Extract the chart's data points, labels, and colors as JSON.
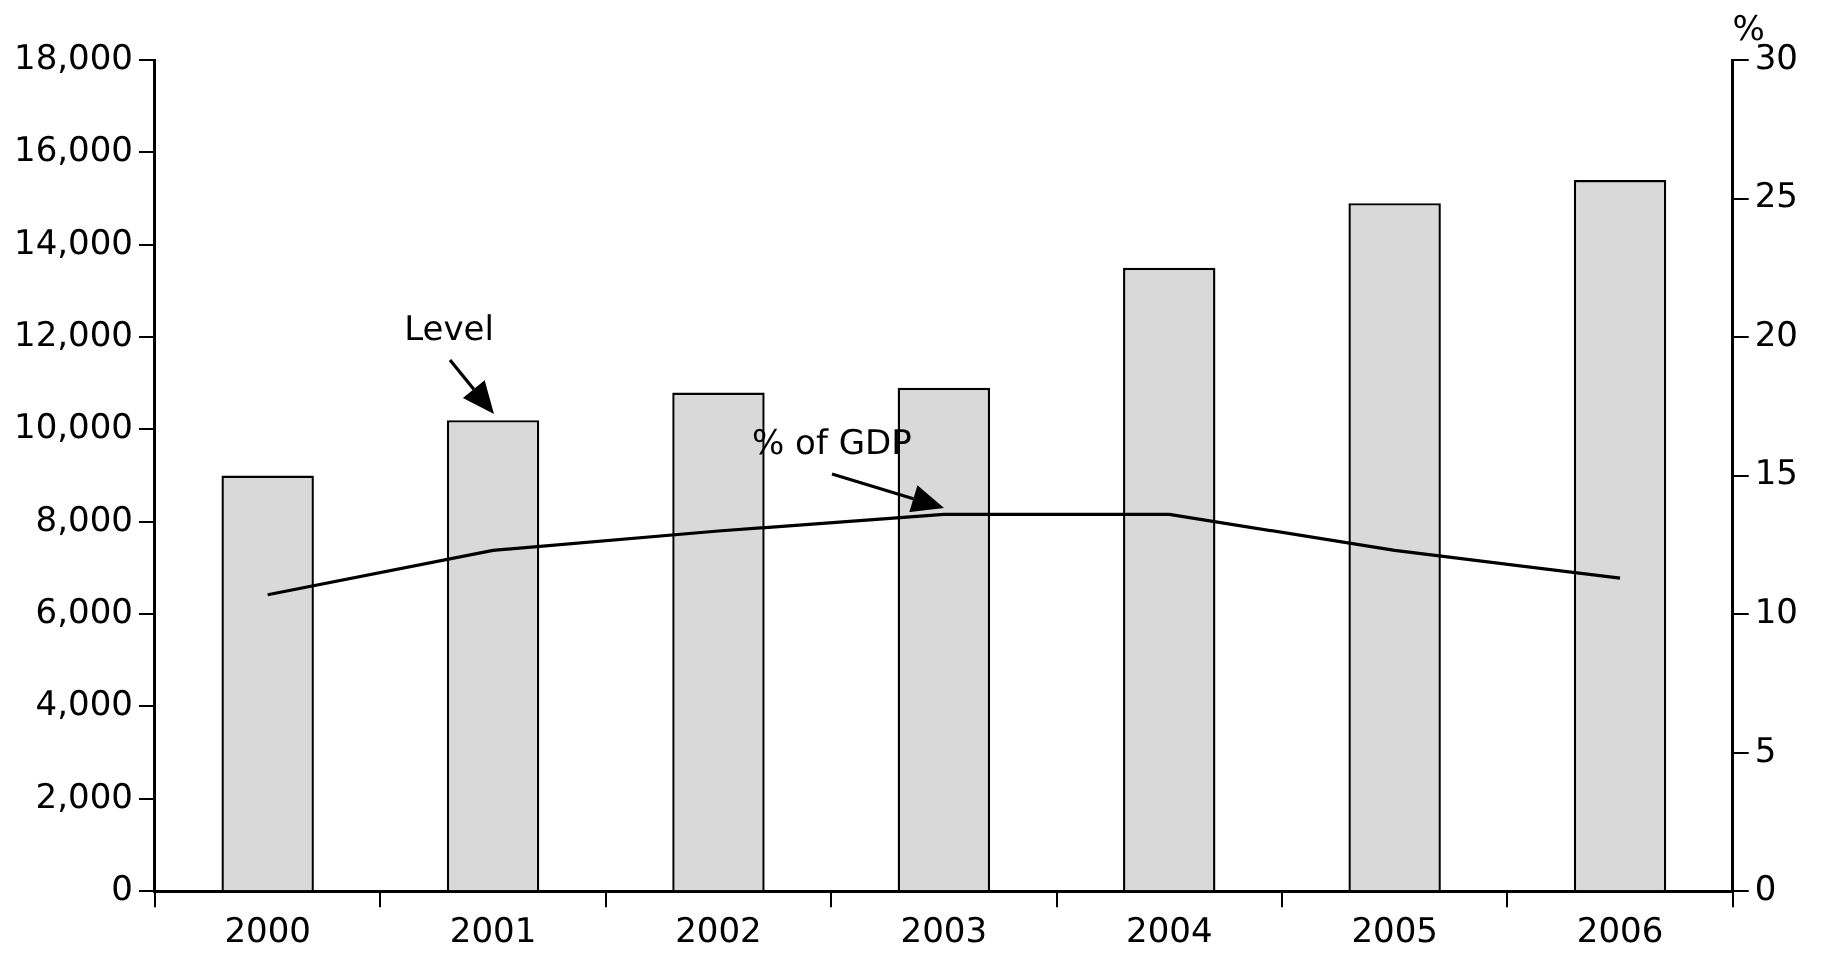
{
  "chart_data": {
    "type": "bar",
    "categories": [
      "2000",
      "2001",
      "2002",
      "2003",
      "2004",
      "2005",
      "2006"
    ],
    "series": [
      {
        "name": "Level",
        "color": "#d9d9d9",
        "values": [
          9000,
          10200,
          10800,
          10900,
          13500,
          14900,
          15400
        ]
      },
      {
        "name": "% of GDP",
        "type": "line",
        "axis": "y2",
        "color": "#000000",
        "values": [
          10.7,
          12.3,
          13.0,
          13.6,
          13.6,
          12.3,
          11.3
        ]
      }
    ],
    "ylim": [
      0,
      18000
    ],
    "yticks": [
      {
        "value": 0,
        "label": "0"
      },
      {
        "value": 2000,
        "label": "2,000"
      },
      {
        "value": 4000,
        "label": "4,000"
      },
      {
        "value": 6000,
        "label": "6,000"
      },
      {
        "value": 8000,
        "label": "8,000"
      },
      {
        "value": 10000,
        "label": "10,000"
      },
      {
        "value": 12000,
        "label": "12,000"
      },
      {
        "value": 14000,
        "label": "14,000"
      },
      {
        "value": 16000,
        "label": "16,000"
      },
      {
        "value": 18000,
        "label": "18,000"
      }
    ],
    "y2lim": [
      0,
      30
    ],
    "y2ticks": [
      0,
      5,
      10,
      15,
      20,
      25,
      30
    ],
    "y2label": "%",
    "grid": false,
    "legend": false,
    "marker": "none",
    "line_style": "solid"
  }
}
